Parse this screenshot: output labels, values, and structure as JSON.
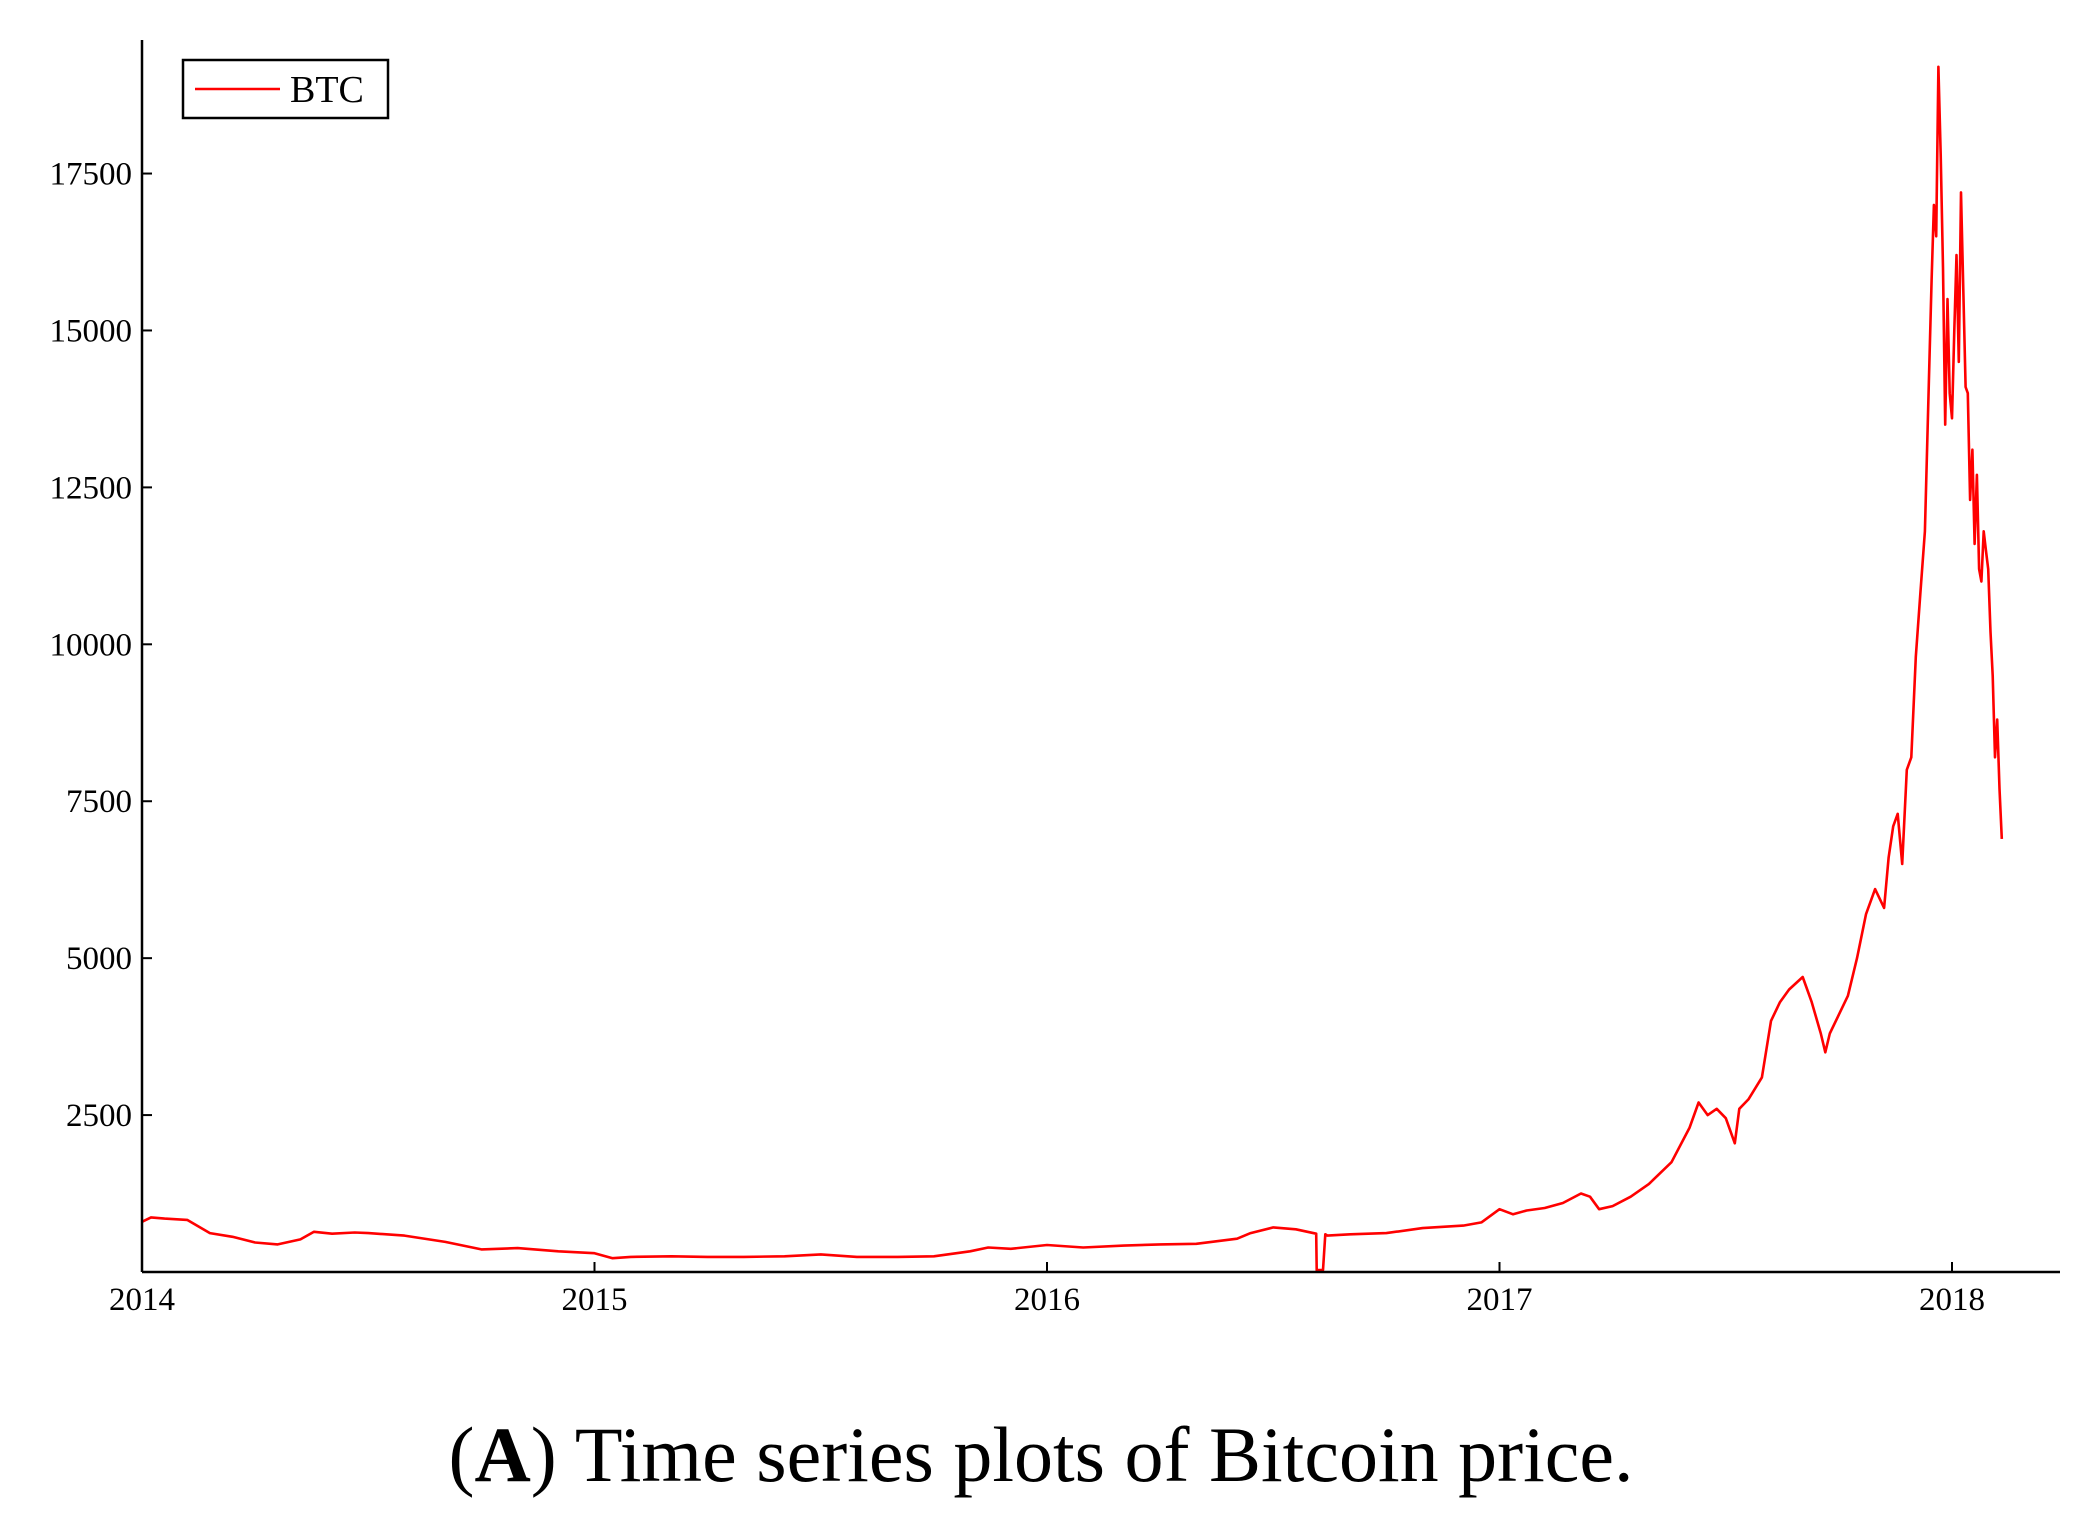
{
  "caption": {
    "paren_open": "(",
    "letter": "A",
    "paren_close": ")",
    "text": " Time series plots of Bitcoin price."
  },
  "chart_data": {
    "type": "line",
    "title": "",
    "xlabel": "",
    "ylabel": "",
    "xlim": [
      2014,
      2018.28
    ],
    "ylim": [
      0,
      19500
    ],
    "x_ticks": [
      2014,
      2015,
      2016,
      2017,
      2018
    ],
    "x_tick_labels": [
      "2014",
      "2015",
      "2016",
      "2017",
      "2018"
    ],
    "y_ticks": [
      2500,
      5000,
      7500,
      10000,
      12500,
      15000,
      17500
    ],
    "y_tick_labels": [
      "2500",
      "5000",
      "7500",
      "10000",
      "12500",
      "15000",
      "17500"
    ],
    "grid": false,
    "legend": {
      "position": "top-left",
      "entries": [
        "BTC"
      ]
    },
    "colors": {
      "series": "#ff0000",
      "axis": "#000000"
    },
    "series": [
      {
        "name": "BTC",
        "x": [
          2014.0,
          2014.02,
          2014.05,
          2014.1,
          2014.15,
          2014.2,
          2014.25,
          2014.3,
          2014.35,
          2014.38,
          2014.42,
          2014.47,
          2014.5,
          2014.58,
          2014.67,
          2014.75,
          2014.83,
          2014.92,
          2015.0,
          2015.04,
          2015.08,
          2015.17,
          2015.25,
          2015.33,
          2015.42,
          2015.5,
          2015.58,
          2015.67,
          2015.75,
          2015.83,
          2015.87,
          2015.92,
          2016.0,
          2016.08,
          2016.17,
          2016.25,
          2016.33,
          2016.42,
          2016.45,
          2016.5,
          2016.55,
          2016.595,
          2016.596,
          2016.61,
          2016.615,
          2016.62,
          2016.67,
          2016.75,
          2016.83,
          2016.92,
          2016.96,
          2017.0,
          2017.03,
          2017.06,
          2017.1,
          2017.14,
          2017.18,
          2017.2,
          2017.22,
          2017.25,
          2017.29,
          2017.33,
          2017.38,
          2017.42,
          2017.44,
          2017.46,
          2017.48,
          2017.5,
          2017.52,
          2017.53,
          2017.55,
          2017.58,
          2017.6,
          2017.62,
          2017.64,
          2017.67,
          2017.69,
          2017.71,
          2017.72,
          2017.73,
          2017.75,
          2017.77,
          2017.79,
          2017.81,
          2017.83,
          2017.85,
          2017.86,
          2017.87,
          2017.88,
          2017.89,
          2017.9,
          2017.91,
          2017.92,
          2017.93,
          2017.94,
          2017.95,
          2017.955,
          2017.96,
          2017.965,
          2017.97,
          2017.975,
          2017.98,
          2017.985,
          2017.99,
          2017.995,
          2018.0,
          2018.005,
          2018.01,
          2018.015,
          2018.02,
          2018.03,
          2018.035,
          2018.04,
          2018.045,
          2018.05,
          2018.055,
          2018.06,
          2018.065,
          2018.07,
          2018.075,
          2018.08,
          2018.085,
          2018.09,
          2018.095,
          2018.1,
          2018.105,
          2018.11
        ],
        "values": [
          800,
          870,
          850,
          830,
          620,
          560,
          470,
          440,
          520,
          640,
          610,
          630,
          620,
          580,
          480,
          360,
          380,
          330,
          300,
          220,
          240,
          250,
          240,
          240,
          250,
          280,
          240,
          240,
          250,
          330,
          390,
          370,
          430,
          390,
          420,
          440,
          450,
          530,
          620,
          710,
          680,
          610,
          30,
          30,
          600,
          580,
          600,
          620,
          700,
          740,
          790,
          1000,
          920,
          980,
          1020,
          1100,
          1250,
          1200,
          1000,
          1050,
          1200,
          1400,
          1750,
          2300,
          2700,
          2500,
          2600,
          2450,
          2050,
          2600,
          2750,
          3100,
          4000,
          4300,
          4500,
          4700,
          4300,
          3800,
          3500,
          3800,
          4100,
          4400,
          5000,
          5700,
          6100,
          5800,
          6600,
          7100,
          7300,
          6500,
          8000,
          8200,
          9800,
          10800,
          11800,
          14500,
          15800,
          17000,
          16500,
          19200,
          17800,
          16000,
          13500,
          15500,
          14000,
          13600,
          15000,
          16200,
          14500,
          17200,
          14100,
          14000,
          12300,
          13100,
          11600,
          12700,
          11200,
          11000,
          11800,
          11500,
          11200,
          10200,
          9500,
          8200,
          8800,
          7700,
          6900
        ]
      }
    ]
  }
}
